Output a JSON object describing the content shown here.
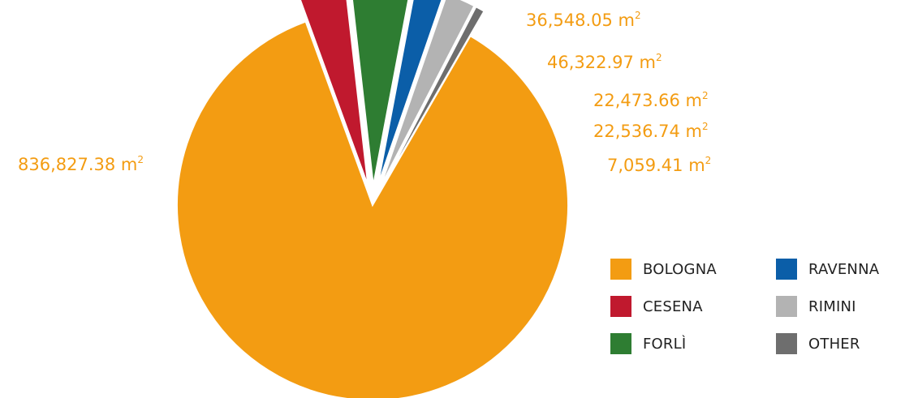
{
  "chart_data": {
    "type": "pie",
    "unit": "m",
    "unit_superscript": "2",
    "slices": [
      {
        "name": "BOLOGNA",
        "value": 836827.38,
        "label": "836,827.38",
        "color": "#f39c12"
      },
      {
        "name": "CESENA",
        "value": 36548.05,
        "label": "36,548.05",
        "color": "#c0192e"
      },
      {
        "name": "FORLÌ",
        "value": 46322.97,
        "label": "46,322.97",
        "color": "#2e7d32"
      },
      {
        "name": "RAVENNA",
        "value": 22473.66,
        "label": "22,473.66",
        "color": "#0b5ea8"
      },
      {
        "name": "RIMINI",
        "value": 22536.74,
        "label": "22,536.74",
        "color": "#b3b3b3"
      },
      {
        "name": "OTHER",
        "value": 7059.41,
        "label": "7,059.41",
        "color": "#6e6e6e"
      }
    ],
    "legend_position": "bottom-right",
    "legend": [
      {
        "name": "BOLOGNA",
        "color": "#f39c12"
      },
      {
        "name": "RAVENNA",
        "color": "#0b5ea8"
      },
      {
        "name": "CESENA",
        "color": "#c0192e"
      },
      {
        "name": "RIMINI",
        "color": "#b3b3b3"
      },
      {
        "name": "FORLÌ",
        "color": "#2e7d32"
      },
      {
        "name": "OTHER",
        "color": "#6e6e6e"
      }
    ]
  }
}
